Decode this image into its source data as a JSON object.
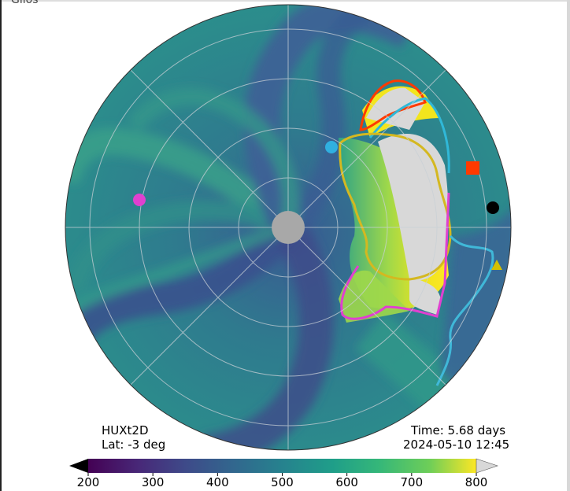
{
  "top_cut_text": "Gilos",
  "model_label": "HUXt2D",
  "lat_label": "Lat:  -3 deg",
  "time_label": "Time: 5.68 days",
  "date_label": "2024-05-10 12:45",
  "colors": {
    "earth_marker": "#000000",
    "sta_marker": "#ff3a00",
    "venus_marker": "#d4c000",
    "mercury_marker": "#30b0e0",
    "mars_marker": "#e040d0",
    "cme_boundary_1": "#ff3a00",
    "cme_boundary_2": "#30b8d8",
    "cme_boundary_3": "#d4b820",
    "cme_boundary_4": "#e040d0",
    "cme_boundary_5": "#40b8d8",
    "cme_interior": "#d8d8d8",
    "inner_boundary": "#a8a8a8"
  },
  "chart_data": {
    "type": "heatmap",
    "projection": "polar",
    "grid": true,
    "colorbar": {
      "ticks": [
        200,
        300,
        400,
        500,
        600,
        700,
        800
      ],
      "range": [
        200,
        800
      ],
      "colormap": "viridis",
      "extend": "both"
    },
    "markers": [
      {
        "name": "earth",
        "shape": "circle",
        "color": "#000000"
      },
      {
        "name": "sta",
        "shape": "square",
        "color": "#ff3a00"
      },
      {
        "name": "venus",
        "shape": "triangle",
        "color": "#d4c000"
      },
      {
        "name": "mercury",
        "shape": "circle",
        "color": "#30b0e0"
      },
      {
        "name": "mars",
        "shape": "circle",
        "color": "#e040d0"
      }
    ]
  }
}
